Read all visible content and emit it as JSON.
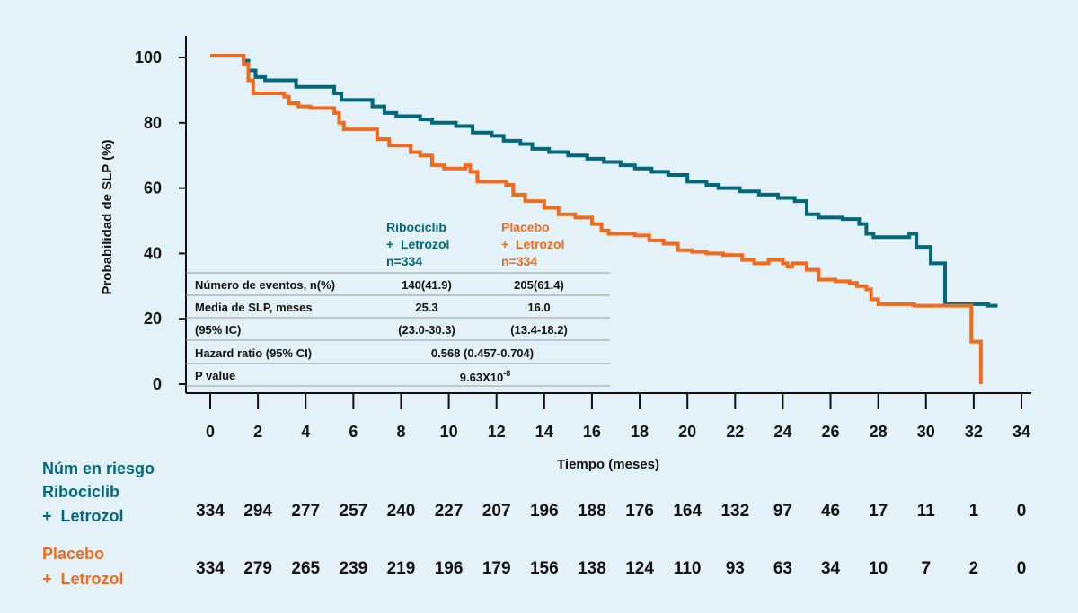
{
  "colors": {
    "background": "#e3f2f8",
    "ribociclib": "#00687a",
    "placebo": "#f26b1c",
    "axis": "#111111"
  },
  "chart_data": {
    "type": "line",
    "subtype": "kaplan-meier-step",
    "xlabel": "Tiempo (meses)",
    "ylabel": "Probabilidad de SLP (%)",
    "xlim": [
      0,
      34
    ],
    "ylim": [
      0,
      100
    ],
    "x_ticks": [
      "0",
      "2",
      "4",
      "6",
      "8",
      "10",
      "12",
      "14",
      "16",
      "18",
      "20",
      "22",
      "24",
      "26",
      "28",
      "30",
      "32",
      "34"
    ],
    "y_ticks": [
      "0",
      "20",
      "40",
      "60",
      "80",
      "100"
    ],
    "grid": false,
    "series": [
      {
        "name": "Ribociclib + Letrozol",
        "color": "#00687a",
        "points": [
          [
            0,
            100.5
          ],
          [
            1,
            100.5
          ],
          [
            1.4,
            99
          ],
          [
            1.6,
            96
          ],
          [
            1.9,
            94
          ],
          [
            2.3,
            93
          ],
          [
            3.6,
            91
          ],
          [
            5.2,
            89
          ],
          [
            5.5,
            87
          ],
          [
            6.8,
            85
          ],
          [
            7.3,
            83
          ],
          [
            7.8,
            82
          ],
          [
            8.8,
            81
          ],
          [
            9.3,
            80
          ],
          [
            10.3,
            79
          ],
          [
            11,
            77
          ],
          [
            11.8,
            76
          ],
          [
            12.3,
            74.5
          ],
          [
            13,
            73.5
          ],
          [
            13.5,
            72
          ],
          [
            14.2,
            71
          ],
          [
            15,
            70
          ],
          [
            15.8,
            69
          ],
          [
            16.5,
            68
          ],
          [
            17.2,
            67
          ],
          [
            17.8,
            66
          ],
          [
            18.5,
            65
          ],
          [
            19.2,
            64
          ],
          [
            20,
            62
          ],
          [
            20.8,
            61
          ],
          [
            21.3,
            60
          ],
          [
            22.2,
            59
          ],
          [
            23,
            58
          ],
          [
            23.8,
            57
          ],
          [
            24.5,
            56
          ],
          [
            25,
            52
          ],
          [
            25.5,
            51
          ],
          [
            26.5,
            50.5
          ],
          [
            27.2,
            49
          ],
          [
            27.5,
            46
          ],
          [
            27.8,
            45
          ],
          [
            29.2,
            45
          ],
          [
            29.3,
            46
          ],
          [
            29.6,
            42
          ],
          [
            30.2,
            37
          ],
          [
            30.8,
            24.5
          ],
          [
            32.5,
            24.5
          ],
          [
            32.6,
            24
          ],
          [
            33,
            24
          ]
        ]
      },
      {
        "name": "Placebo + Letrozol",
        "color": "#f26b1c",
        "points": [
          [
            0,
            100.5
          ],
          [
            1,
            100.5
          ],
          [
            1.4,
            98
          ],
          [
            1.6,
            93
          ],
          [
            1.8,
            89
          ],
          [
            2.7,
            89
          ],
          [
            3.1,
            88
          ],
          [
            3.3,
            86
          ],
          [
            3.7,
            85
          ],
          [
            4.2,
            84.5
          ],
          [
            5.2,
            83
          ],
          [
            5.4,
            80
          ],
          [
            5.6,
            78
          ],
          [
            7,
            75
          ],
          [
            7.5,
            73
          ],
          [
            8.4,
            71
          ],
          [
            8.8,
            70
          ],
          [
            9.3,
            67
          ],
          [
            9.8,
            66
          ],
          [
            10.7,
            67
          ],
          [
            10.9,
            65
          ],
          [
            11.2,
            62
          ],
          [
            12.4,
            61
          ],
          [
            12.7,
            58
          ],
          [
            13.2,
            56
          ],
          [
            14,
            54
          ],
          [
            14.6,
            52
          ],
          [
            15.3,
            51
          ],
          [
            16,
            49
          ],
          [
            16.4,
            47
          ],
          [
            16.7,
            46
          ],
          [
            17.8,
            45.5
          ],
          [
            18.4,
            44
          ],
          [
            19,
            43
          ],
          [
            19.6,
            41
          ],
          [
            20.2,
            40.5
          ],
          [
            20.8,
            40
          ],
          [
            21.5,
            39.5
          ],
          [
            22.3,
            38
          ],
          [
            22.8,
            37
          ],
          [
            23.4,
            38
          ],
          [
            24,
            37
          ],
          [
            24.2,
            36
          ],
          [
            24.4,
            37
          ],
          [
            25,
            35
          ],
          [
            25.5,
            32
          ],
          [
            26.2,
            31.5
          ],
          [
            26.8,
            31
          ],
          [
            27.1,
            30
          ],
          [
            27.5,
            29
          ],
          [
            27.7,
            26
          ],
          [
            28,
            24.5
          ],
          [
            29,
            24.5
          ],
          [
            29.5,
            24
          ],
          [
            30,
            24
          ],
          [
            31.8,
            24
          ],
          [
            31.9,
            13
          ],
          [
            32.2,
            13
          ],
          [
            32.3,
            0
          ]
        ]
      }
    ]
  },
  "legend": {
    "ribociclib": {
      "l1": "Ribociclib",
      "l2": "+  Letrozol",
      "l3": "n=334"
    },
    "placebo": {
      "l1": "Placebo",
      "l2": "+  Letrozol",
      "l3": "n=334"
    }
  },
  "stats_table": {
    "rows": [
      {
        "label": "Número de eventos, n(%)",
        "a": "140(41.9)",
        "b": "205(61.4)"
      },
      {
        "label": "Media de SLP, meses",
        "a": "25.3",
        "b": "16.0"
      },
      {
        "label": "(95% IC)",
        "a": "(23.0-30.3)",
        "b": "(13.4-18.2)"
      },
      {
        "label": "Hazard ratio (95% CI)",
        "combined": "0.568 (0.457-0.704)"
      },
      {
        "label": "P value",
        "combined_base": "9.63X10",
        "combined_exp": "-8"
      }
    ]
  },
  "risk_table": {
    "title": "Núm en riesgo",
    "ribociclib": {
      "l1": "Ribociclib",
      "l2": "+  Letrozol",
      "values": [
        "334",
        "294",
        "277",
        "257",
        "240",
        "227",
        "207",
        "196",
        "188",
        "176",
        "164",
        "132",
        "97",
        "46",
        "17",
        "11",
        "1",
        "0"
      ]
    },
    "placebo": {
      "l1": "Placebo",
      "l2": "+  Letrozol",
      "values": [
        "334",
        "279",
        "265",
        "239",
        "219",
        "196",
        "179",
        "156",
        "138",
        "124",
        "110",
        "93",
        "63",
        "34",
        "10",
        "7",
        "2",
        "0"
      ]
    }
  }
}
